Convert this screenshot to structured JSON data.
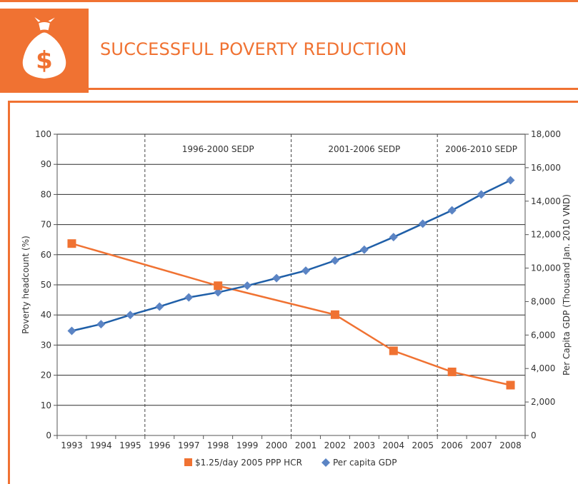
{
  "header": {
    "title": "SUCCESSFUL POVERTY REDUCTION",
    "icon": "money-bag-icon",
    "icon_symbol": "$"
  },
  "colors": {
    "accent": "#f07232",
    "poverty_series": "#f07232",
    "gdp_series": "#1f5fa8",
    "gdp_marker": "#5b84c4"
  },
  "chart_data": {
    "type": "line",
    "title": "",
    "x": [
      1993,
      1994,
      1995,
      1996,
      1997,
      1998,
      1999,
      2000,
      2001,
      2002,
      2003,
      2004,
      2005,
      2006,
      2007,
      2008
    ],
    "x_tick_labels": [
      "1993",
      "1994",
      "1995",
      "1996",
      "1997",
      "1998",
      "1999",
      "2000",
      "2001",
      "2002",
      "2003",
      "2004",
      "2005",
      "2006",
      "2007",
      "2008"
    ],
    "ylabel": "Poverty headcount (%)",
    "ylim": [
      0,
      100
    ],
    "y_ticks": [
      "0",
      "10",
      "20",
      "30",
      "40",
      "50",
      "60",
      "70",
      "80",
      "90",
      "100"
    ],
    "y2label": "Per Capita GDP (Thousand Jan. 2010 VND)",
    "y2lim": [
      0,
      18000
    ],
    "y2_ticks": [
      "0",
      "2,000",
      "4,000",
      "6,000",
      "8,000",
      "10,000",
      "12,000",
      "14,000",
      "16,000",
      "18,000"
    ],
    "grid": "horizontal",
    "periods": [
      {
        "label": "1996-2000 SEDP",
        "start": 1996,
        "end": 2001
      },
      {
        "label": "2001-2006 SEDP",
        "start": 2001,
        "end": 2006
      },
      {
        "label": "2006-2010 SEDP",
        "start": 2006,
        "end": 2008
      }
    ],
    "series": [
      {
        "name": "$1.25/day 2005 PPP HCR",
        "axis": "left",
        "marker": "square",
        "x": [
          1993,
          1998,
          2002,
          2004,
          2006,
          2008
        ],
        "values": [
          63.7,
          49.7,
          40.1,
          28.1,
          21.1,
          16.7
        ]
      },
      {
        "name": "Per capita GDP",
        "axis": "right",
        "marker": "diamond",
        "x": [
          1993,
          1994,
          1995,
          1996,
          1997,
          1998,
          1999,
          2000,
          2001,
          2002,
          2003,
          2004,
          2005,
          2006,
          2007,
          2008
        ],
        "values": [
          6250,
          6650,
          7200,
          7700,
          8250,
          8550,
          8950,
          9400,
          9850,
          10450,
          11100,
          11850,
          12650,
          13450,
          14400,
          15250
        ]
      }
    ],
    "legend_position": "bottom-center"
  }
}
